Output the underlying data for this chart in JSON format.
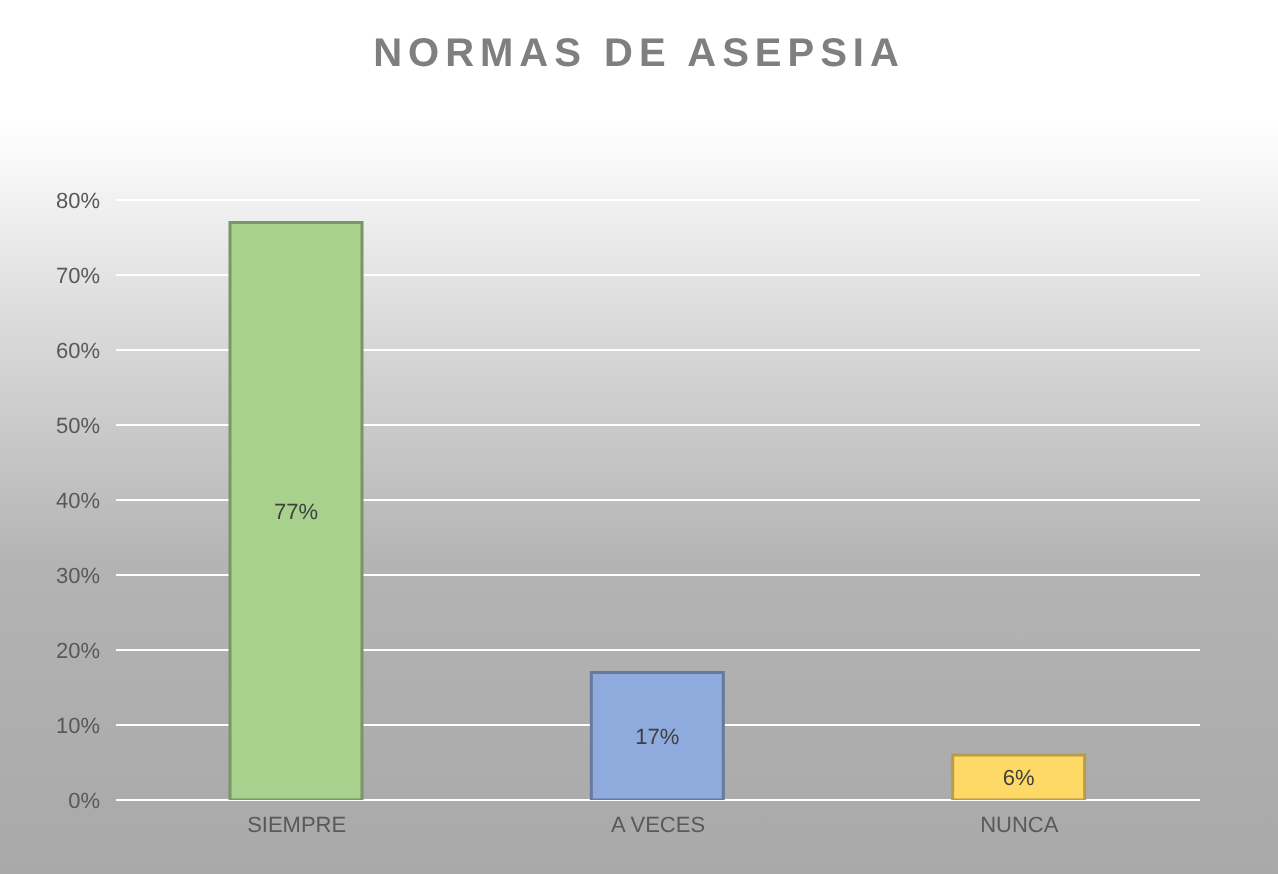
{
  "chart_data": {
    "type": "bar",
    "title": "NORMAS DE ASEPSIA",
    "categories": [
      "SIEMPRE",
      "A VECES",
      "NUNCA"
    ],
    "values": [
      77,
      17,
      6
    ],
    "colors": [
      "#a9d18e",
      "#8faadc",
      "#ffd966"
    ],
    "value_labels": [
      "77%",
      "17%",
      "6%"
    ],
    "ylim": [
      0,
      80
    ],
    "yticks": [
      {
        "value": 0,
        "label": "0%"
      },
      {
        "value": 10,
        "label": "10%"
      },
      {
        "value": 20,
        "label": "20%"
      },
      {
        "value": 30,
        "label": "30%"
      },
      {
        "value": 40,
        "label": "40%"
      },
      {
        "value": 50,
        "label": "50%"
      },
      {
        "value": 60,
        "label": "60%"
      },
      {
        "value": 70,
        "label": "70%"
      },
      {
        "value": 80,
        "label": "80%"
      }
    ],
    "grid": "y",
    "legend": false
  }
}
